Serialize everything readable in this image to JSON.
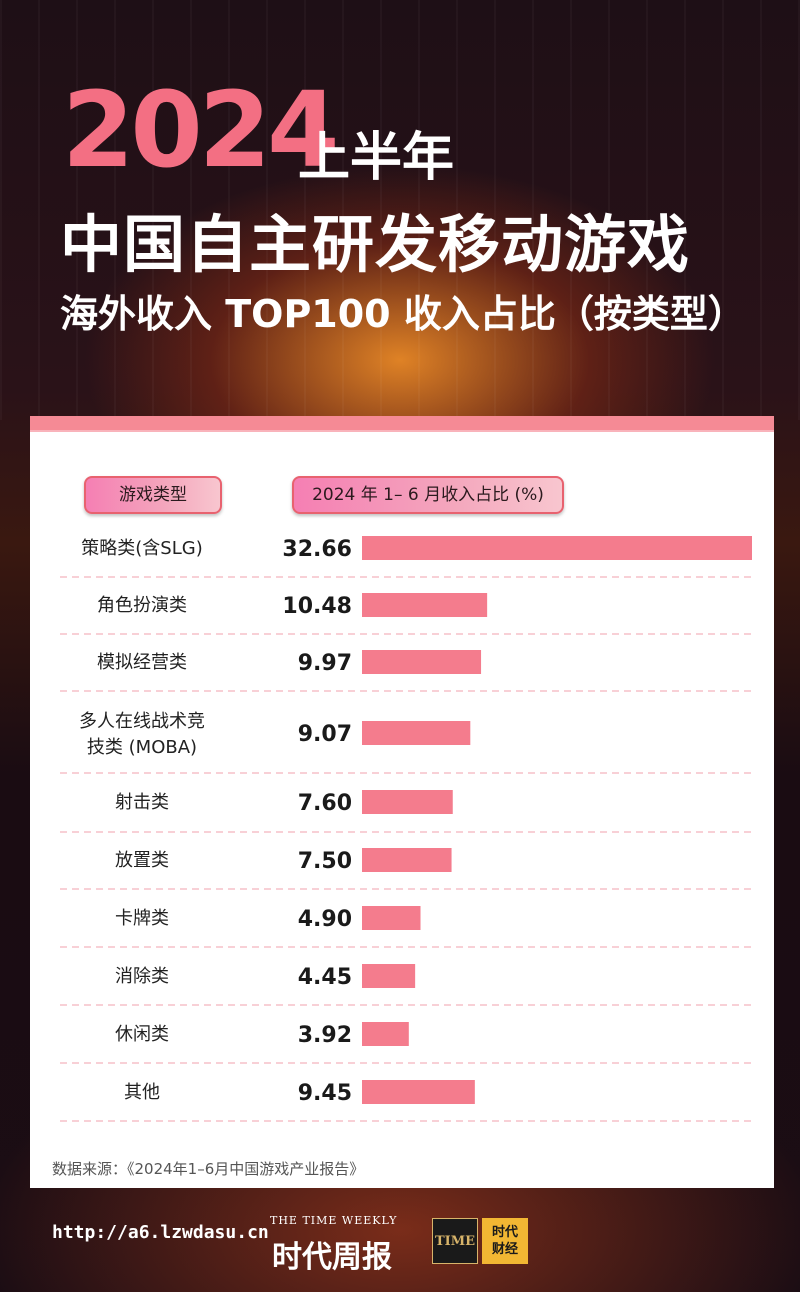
{
  "header": {
    "year": "2024",
    "half": "上半年",
    "main_title": "中国自主研发移动游戏",
    "sub_title": "海外收入 TOP100 收入占比（按类型）"
  },
  "table": {
    "col_category_label": "游戏类型",
    "col_value_label": "2024 年 1– 6 月收入占比 (%)"
  },
  "chart_data": {
    "type": "bar",
    "orientation": "horizontal",
    "categories": [
      "策略类(含SLG)",
      "角色扮演类",
      "模拟经营类",
      "多人在线战术竞技类 (MOBA)",
      "射击类",
      "放置类",
      "卡牌类",
      "消除类",
      "休闲类",
      "其他"
    ],
    "value_labels": [
      "32.66",
      "10.48",
      "9.97",
      "9.07",
      "7.60",
      "7.50",
      "4.90",
      "4.45",
      "3.92",
      "9.45"
    ],
    "values": [
      32.66,
      10.48,
      9.97,
      9.07,
      7.6,
      7.5,
      4.9,
      4.45,
      3.92,
      9.45
    ],
    "xlim": [
      0,
      32.66
    ],
    "bar_color": "#f47c8d",
    "separator_color": "#f3b3bd"
  },
  "source": "数据来源：《2024年1–6月中国游戏产业报告》",
  "footer": {
    "url": "http://a6.lzwdasu.cn",
    "weekly": "THE TIME WEEKLY",
    "brand": "时代周报",
    "logo_time": "TIME",
    "logo_caijing_1": "时代",
    "logo_caijing_2": "财经"
  }
}
